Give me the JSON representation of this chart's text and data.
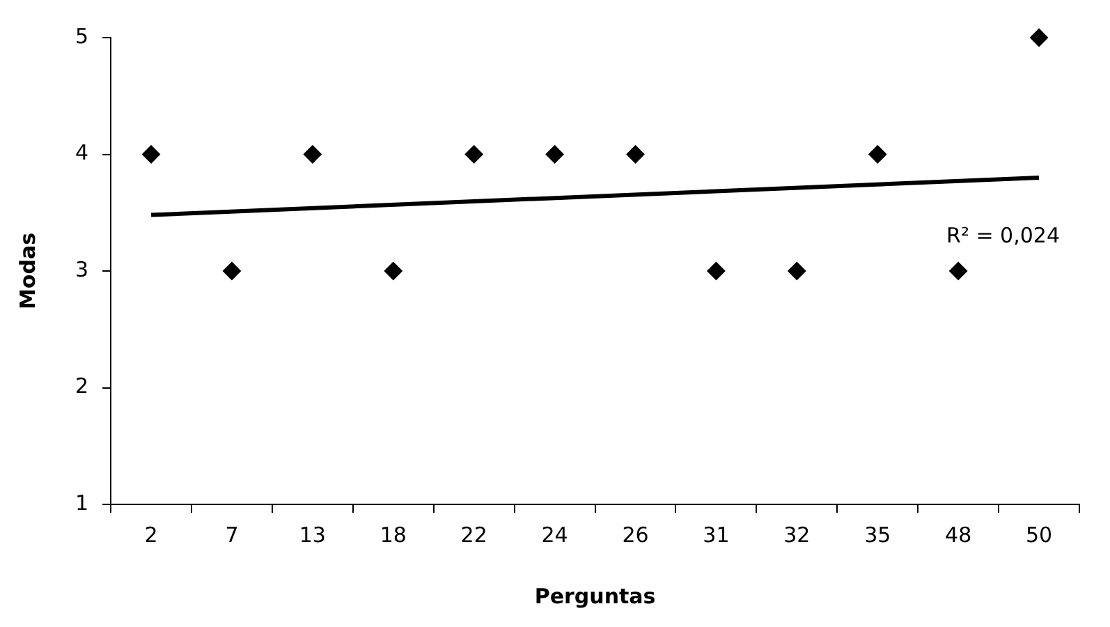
{
  "chart_data": {
    "type": "scatter",
    "xlabel": "Perguntas",
    "ylabel": "Modas",
    "categories": [
      "2",
      "7",
      "13",
      "18",
      "22",
      "24",
      "26",
      "31",
      "32",
      "35",
      "48",
      "50"
    ],
    "series": [
      {
        "color": "#000000",
        "marker": "diamond",
        "values": [
          4,
          3,
          4,
          3,
          4,
          4,
          4,
          3,
          3,
          4,
          3,
          5
        ]
      },
      {
        "type": "line",
        "color": "#000000",
        "x": [
          "2",
          "50"
        ],
        "values": [
          3.48,
          3.8
        ]
      }
    ],
    "ylim": [
      1,
      5
    ],
    "yticks": [
      1,
      2,
      3,
      4,
      5
    ],
    "grid": false,
    "legend": false,
    "annotations": [
      "R² = 0,024"
    ]
  }
}
